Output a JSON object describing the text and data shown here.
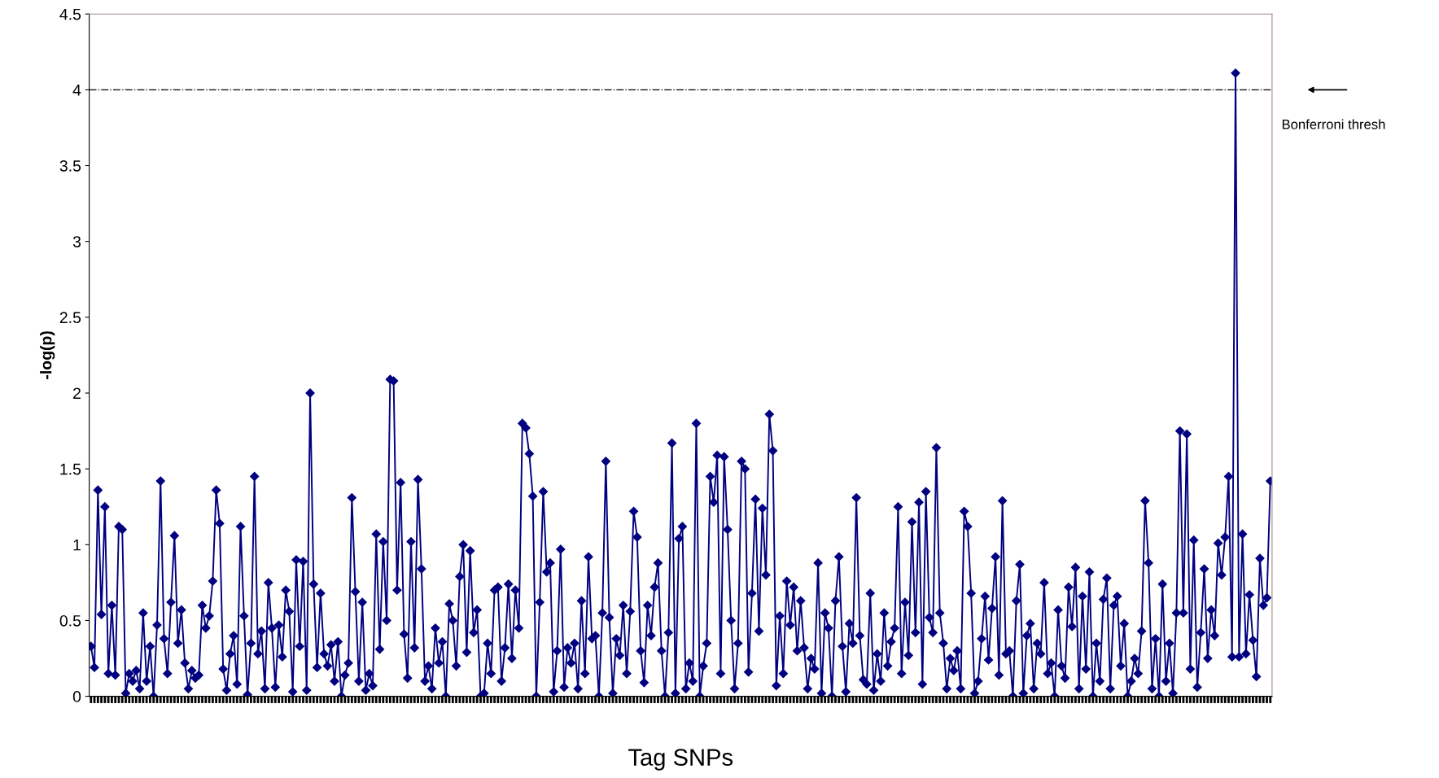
{
  "chart_data": {
    "type": "line",
    "xlabel": "Tag SNPs",
    "ylabel": "-log(p)",
    "ylim": [
      0,
      4.5
    ],
    "yticks": [
      0,
      0.5,
      1,
      1.5,
      2,
      2.5,
      3,
      3.5,
      4,
      4.5
    ],
    "tick_labels": "y",
    "marker": "diamond",
    "line_style": "solid",
    "grid": false,
    "legend": false,
    "ref_lines": [
      {
        "axis": "y",
        "value": 4,
        "label": "Bonferroni thresh",
        "color": "#000000",
        "line_style": "dashdot"
      }
    ],
    "series": [
      {
        "color": "#000080",
        "values": [
          0.33,
          0.19,
          1.36,
          0.54,
          1.25,
          0.15,
          0.6,
          0.14,
          1.12,
          1.1,
          0.02,
          0.15,
          0.1,
          0.17,
          0.05,
          0.55,
          0.1,
          0.33,
          0.0,
          0.47,
          1.42,
          0.38,
          0.15,
          0.62,
          1.06,
          0.35,
          0.57,
          0.22,
          0.05,
          0.17,
          0.12,
          0.14,
          0.6,
          0.45,
          0.53,
          0.76,
          1.36,
          1.14,
          0.18,
          0.04,
          0.28,
          0.4,
          0.08,
          1.12,
          0.53,
          0.01,
          0.35,
          1.45,
          0.28,
          0.43,
          0.05,
          0.75,
          0.45,
          0.06,
          0.47,
          0.26,
          0.7,
          0.56,
          0.03,
          0.9,
          0.33,
          0.89,
          0.04,
          2.0,
          0.74,
          0.19,
          0.68,
          0.28,
          0.2,
          0.34,
          0.1,
          0.36,
          0.0,
          0.14,
          0.22,
          1.31,
          0.69,
          0.1,
          0.62,
          0.04,
          0.15,
          0.07,
          1.07,
          0.31,
          1.02,
          0.5,
          2.09,
          2.08,
          0.7,
          1.41,
          0.41,
          0.12,
          1.02,
          0.32,
          1.43,
          0.84,
          0.1,
          0.2,
          0.05,
          0.45,
          0.22,
          0.36,
          0.0,
          0.61,
          0.5,
          0.2,
          0.79,
          1.0,
          0.29,
          0.96,
          0.42,
          0.57,
          0.0,
          0.02,
          0.35,
          0.15,
          0.7,
          0.72,
          0.1,
          0.32,
          0.74,
          0.25,
          0.7,
          0.45,
          1.8,
          1.77,
          1.6,
          1.32,
          0.0,
          0.62,
          1.35,
          0.82,
          0.88,
          0.03,
          0.3,
          0.97,
          0.06,
          0.32,
          0.22,
          0.35,
          0.05,
          0.63,
          0.15,
          0.92,
          0.38,
          0.4,
          0.0,
          0.55,
          1.55,
          0.52,
          0.02,
          0.38,
          0.27,
          0.6,
          0.15,
          0.56,
          1.22,
          1.05,
          0.3,
          0.09,
          0.6,
          0.4,
          0.72,
          0.88,
          0.3,
          0.0,
          0.42,
          1.67,
          0.02,
          1.04,
          1.12,
          0.05,
          0.22,
          0.1,
          1.8,
          0.0,
          0.2,
          0.35,
          1.45,
          1.28,
          1.59,
          0.15,
          1.58,
          1.1,
          0.5,
          0.05,
          0.35,
          1.55,
          1.5,
          0.16,
          0.68,
          1.3,
          0.43,
          1.24,
          0.8,
          1.86,
          1.62,
          0.07,
          0.53,
          0.15,
          0.76,
          0.47,
          0.72,
          0.3,
          0.63,
          0.32,
          0.05,
          0.25,
          0.18,
          0.88,
          0.02,
          0.55,
          0.45,
          0.0,
          0.63,
          0.92,
          0.33,
          0.03,
          0.48,
          0.35,
          1.31,
          0.4,
          0.11,
          0.08,
          0.68,
          0.04,
          0.28,
          0.1,
          0.55,
          0.2,
          0.36,
          0.45,
          1.25,
          0.15,
          0.62,
          0.27,
          1.15,
          0.42,
          1.28,
          0.08,
          1.35,
          0.52,
          0.42,
          1.64,
          0.55,
          0.35,
          0.05,
          0.25,
          0.17,
          0.3,
          0.05,
          1.22,
          1.12,
          0.68,
          0.02,
          0.1,
          0.38,
          0.66,
          0.24,
          0.58,
          0.92,
          0.14,
          1.29,
          0.28,
          0.3,
          0.0,
          0.63,
          0.87,
          0.02,
          0.4,
          0.48,
          0.05,
          0.35,
          0.28,
          0.75,
          0.15,
          0.22,
          0.0,
          0.57,
          0.2,
          0.12,
          0.72,
          0.46,
          0.85,
          0.05,
          0.66,
          0.18,
          0.82,
          0.0,
          0.35,
          0.1,
          0.64,
          0.78,
          0.05,
          0.6,
          0.66,
          0.2,
          0.48,
          0.0,
          0.1,
          0.25,
          0.15,
          0.43,
          1.29,
          0.88,
          0.05,
          0.38,
          0.0,
          0.74,
          0.1,
          0.35,
          0.02,
          0.55,
          1.75,
          0.55,
          1.73,
          0.18,
          1.03,
          0.06,
          0.42,
          0.84,
          0.25,
          0.57,
          0.4,
          1.01,
          0.8,
          1.05,
          1.45,
          0.26,
          4.11,
          0.26,
          1.07,
          0.28,
          0.67,
          0.37,
          0.13,
          0.91,
          0.6,
          0.65,
          1.42
        ]
      }
    ]
  }
}
